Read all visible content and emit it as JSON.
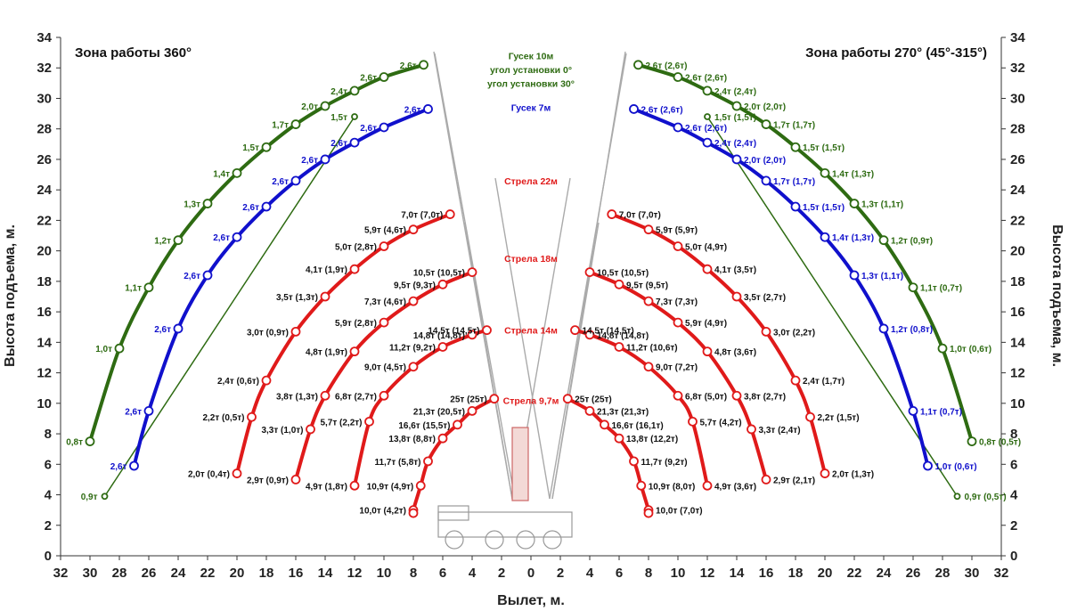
{
  "chart_data": {
    "type": "line",
    "xlabel": "Вылет, м.",
    "ylabel": "Высота подъема, м.",
    "xlim": [
      -32,
      32
    ],
    "ylim": [
      0,
      34
    ],
    "x_ticks": [
      32,
      30,
      28,
      26,
      24,
      22,
      20,
      18,
      16,
      14,
      12,
      10,
      8,
      6,
      4,
      2,
      0,
      2,
      4,
      6,
      8,
      10,
      12,
      14,
      16,
      18,
      20,
      22,
      24,
      26,
      28,
      30,
      32
    ],
    "y_ticks": [
      0,
      2,
      4,
      6,
      8,
      10,
      12,
      14,
      16,
      18,
      20,
      22,
      24,
      26,
      28,
      30,
      32,
      34
    ],
    "grid": false,
    "zone_left": "Зона работы 360°",
    "zone_right": "Зона работы 270° (45°-315°)",
    "annotations": [
      {
        "text": "Гусек 10м",
        "color": "#2e6b12"
      },
      {
        "text": "угол установки 0°",
        "color": "#2e6b12"
      },
      {
        "text": "угол установки 30°",
        "color": "#2e6b12"
      },
      {
        "text": "Гусек 7м",
        "color": "#1010cc"
      },
      {
        "text": "Стрела 22м",
        "color": "#e01a1a"
      },
      {
        "text": "Стрела 18м",
        "color": "#e01a1a"
      },
      {
        "text": "Стрела 14м",
        "color": "#e01a1a"
      },
      {
        "text": "Стрела 9,7м",
        "color": "#e01a1a"
      }
    ],
    "series": [
      {
        "color": "#2e6b12",
        "width": 4,
        "x": [
          7.3,
          10,
          12,
          14,
          16,
          18,
          20,
          22,
          24,
          26,
          28,
          30
        ],
        "y": [
          32.2,
          31.4,
          30.5,
          29.5,
          28.3,
          26.8,
          25.1,
          23.1,
          20.7,
          17.6,
          13.6,
          7.5
        ],
        "left": [
          "2,6т",
          "2,6т",
          "2,4т",
          "2,0т",
          "1,7т",
          "1,5т",
          "1,4т",
          "1,3т",
          "1,2т",
          "1,1т",
          "1,0т",
          "0,8т"
        ],
        "right": [
          "2,6т (2,6т)",
          "2,6т (2,6т)",
          "2,4т (2,4т)",
          "2,0т (2,0т)",
          "1,7т (1,7т)",
          "1,5т (1,5т)",
          "1,4т (1,3т)",
          "1,3т (1,1т)",
          "1,2т (0,9т)",
          "1,1т (0,7т)",
          "1,0т (0,6т)",
          "0,8т (0,5т)"
        ]
      },
      {
        "color": "#2e6b12",
        "width": 1.5,
        "x": [
          12,
          29
        ],
        "y": [
          28.8,
          3.9
        ],
        "left": [
          "1,5т",
          "0,9т"
        ],
        "right": [
          "1,5т (1,5т)",
          "0,9т (0,5т)"
        ]
      },
      {
        "color": "#1010cc",
        "width": 4,
        "x": [
          7,
          10,
          12,
          14,
          16,
          18,
          20,
          22,
          24,
          26,
          27
        ],
        "y": [
          29.3,
          28.1,
          27.1,
          26.0,
          24.6,
          22.9,
          20.9,
          18.4,
          14.9,
          9.5,
          5.9
        ],
        "left": [
          "2,6т",
          "2,6т",
          "2,6т",
          "2,6т",
          "2,6т",
          "2,6т",
          "2,6т",
          "2,6т",
          "2,6т",
          "2,6т",
          "2,6т"
        ],
        "right": [
          "2,6т (2,6т)",
          "2,6т (2,6т)",
          "2,4т (2,4т)",
          "2,0т (2,0т)",
          "1,7т (1,7т)",
          "1,5т (1,5т)",
          "1,4т (1,3т)",
          "1,3т (1,1т)",
          "1,2т (0,8т)",
          "1,1т (0,7т)",
          "1,0т (0,6т)"
        ]
      },
      {
        "color": "#e01a1a",
        "width": 4,
        "x": [
          5.5,
          8,
          10,
          12,
          14,
          16,
          18,
          19,
          20
        ],
        "y": [
          22.4,
          21.4,
          20.3,
          18.8,
          17.0,
          14.7,
          11.5,
          9.1,
          5.4
        ],
        "left": [
          "7,0т (7,0т)",
          "5,9т (4,6т)",
          "5,0т (2,8т)",
          "4,1т (1,9т)",
          "3,5т (1,3т)",
          "3,0т (0,9т)",
          "2,4т (0,6т)",
          "2,2т (0,5т)",
          "2,0т (0,4т)"
        ],
        "right": [
          "7,0т (7,0т)",
          "5,9т (5,9т)",
          "5,0т (4,9т)",
          "4,1т (3,5т)",
          "3,5т (2,7т)",
          "3,0т (2,2т)",
          "2,4т (1,7т)",
          "2,2т (1,5т)",
          "2,0т (1,3т)"
        ]
      },
      {
        "color": "#e01a1a",
        "width": 4,
        "x": [
          4,
          6,
          8,
          10,
          12,
          14,
          15,
          16
        ],
        "y": [
          18.6,
          17.8,
          16.7,
          15.3,
          13.4,
          10.5,
          8.3,
          5.0
        ],
        "left": [
          "10,5т (10,5т)",
          "9,5т (9,3т)",
          "7,3т (4,6т)",
          "5,9т (2,8т)",
          "4,8т (1,9т)",
          "3,8т (1,3т)",
          "3,3т (1,0т)",
          "2,9т (0,9т)"
        ],
        "right": [
          "10,5т (10,5т)",
          "9,5т (9,5т)",
          "7,3т (7,3т)",
          "5,9т (4,9т)",
          "4,8т (3,6т)",
          "3,8т (2,7т)",
          "3,3т (2,4т)",
          "2,9т (2,1т)"
        ]
      },
      {
        "color": "#e01a1a",
        "width": 4,
        "x": [
          3,
          4,
          6,
          8,
          10,
          11,
          12
        ],
        "y": [
          14.8,
          14.5,
          13.7,
          12.4,
          10.5,
          8.8,
          4.6
        ],
        "left": [
          "14,5т (14,5т)",
          "14,8т (14,8т)",
          "11,2т (9,2т)",
          "9,0т (4,5т)",
          "6,8т (2,7т)",
          "5,7т (2,2т)",
          "4,9т (1,8т)"
        ],
        "right": [
          "14,5т (14,5т)",
          "14,8т (14,8т)",
          "11,2т (10,6т)",
          "9,0т (7,2т)",
          "6,8т (5,0т)",
          "5,7т (4,2т)",
          "4,9т (3,6т)"
        ]
      },
      {
        "color": "#e01a1a",
        "width": 4,
        "x": [
          2.5,
          4,
          5,
          6,
          7,
          7.5,
          8,
          8
        ],
        "y": [
          10.3,
          9.5,
          8.6,
          7.7,
          6.2,
          4.6,
          3.0,
          2.8
        ],
        "left": [
          "25т (25т)",
          "21,3т (20,5т)",
          "16,6т (15,5т)",
          "13,8т (8,8т)",
          "11,7т (5,8т)",
          "10,9т (4,9т)",
          "10,0т (4,2т)",
          ""
        ],
        "right": [
          "25т (25т)",
          "21,3т (21,3т)",
          "16,6т (16,1т)",
          "13,8т (12,2т)",
          "11,7т (9,2т)",
          "10,9т (8,0т)",
          "10,0т (7,0т)",
          ""
        ]
      }
    ]
  }
}
